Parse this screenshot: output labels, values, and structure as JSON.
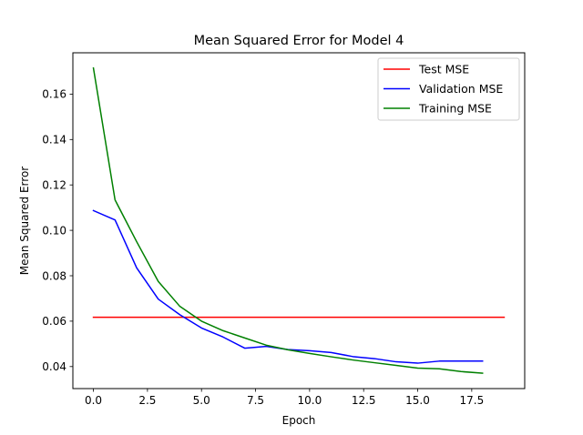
{
  "chart_data": {
    "type": "line",
    "title": "Mean Squared Error for Model 4",
    "xlabel": "Epoch",
    "ylabel": "Mean Squared Error",
    "xlim": [
      -0.95,
      19.95
    ],
    "ylim": [
      0.0303,
      0.1782
    ],
    "xticks": [
      0,
      2.5,
      5,
      7.5,
      10,
      12.5,
      15,
      17.5
    ],
    "xtick_labels": [
      "0.0",
      "2.5",
      "5.0",
      "7.5",
      "10.0",
      "12.5",
      "15.0",
      "17.5"
    ],
    "yticks": [
      0.04,
      0.06,
      0.08,
      0.1,
      0.12,
      0.14,
      0.16
    ],
    "ytick_labels": [
      "0.04",
      "0.06",
      "0.08",
      "0.10",
      "0.12",
      "0.14",
      "0.16"
    ],
    "grid": false,
    "legend_position": "top-right",
    "series": [
      {
        "name": "Test MSE",
        "color": "#ff0000",
        "x": [
          0,
          19
        ],
        "y": [
          0.0617,
          0.0617
        ]
      },
      {
        "name": "Validation MSE",
        "color": "#0000ff",
        "x": [
          0,
          1,
          2,
          3,
          4,
          5,
          6,
          7,
          8,
          9,
          10,
          11,
          12,
          13,
          14,
          15,
          16,
          17,
          18
        ],
        "y": [
          0.1087,
          0.1046,
          0.0835,
          0.0697,
          0.0628,
          0.057,
          0.053,
          0.0481,
          0.0489,
          0.0475,
          0.047,
          0.0462,
          0.0444,
          0.0435,
          0.0421,
          0.0415,
          0.0424,
          0.0424,
          0.0424
        ]
      },
      {
        "name": "Training MSE",
        "color": "#008000",
        "x": [
          0,
          1,
          2,
          3,
          4,
          5,
          6,
          7,
          8,
          9,
          10,
          11,
          12,
          13,
          14,
          15,
          16,
          17,
          18
        ],
        "y": [
          0.1715,
          0.1134,
          0.095,
          0.0775,
          0.0665,
          0.06,
          0.0558,
          0.0526,
          0.0494,
          0.0474,
          0.0458,
          0.0443,
          0.0429,
          0.0417,
          0.0405,
          0.0393,
          0.039,
          0.0378,
          0.0371
        ]
      }
    ]
  }
}
